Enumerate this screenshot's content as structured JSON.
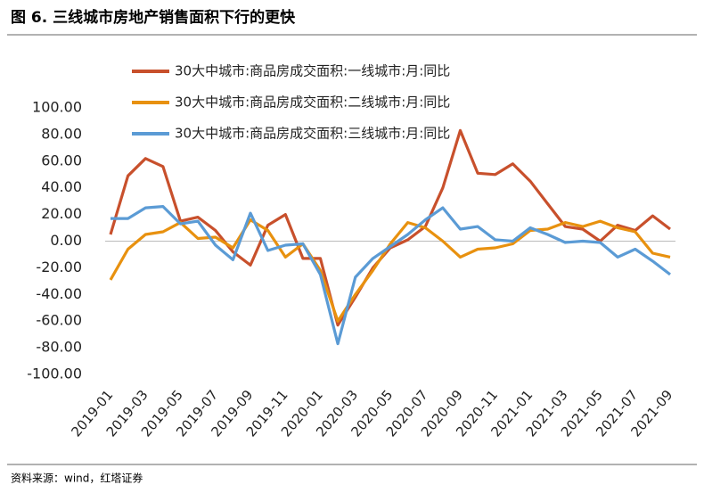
{
  "header": {
    "title": "图 6. 三线城市房地产销售面积下行的更快"
  },
  "footer": {
    "source": "资料来源：wind，红塔证券"
  },
  "chart_data": {
    "type": "line",
    "categories": [
      "2019-01",
      null,
      "2019-03",
      null,
      "2019-05",
      null,
      "2019-07",
      null,
      "2019-09",
      null,
      "2019-11",
      null,
      "2020-01",
      null,
      "2020-03",
      null,
      "2020-05",
      null,
      "2020-07",
      null,
      "2020-09",
      null,
      "2020-11",
      null,
      "2021-01",
      null,
      "2021-03",
      null,
      "2021-05",
      null,
      "2021-07",
      null,
      "2021-09"
    ],
    "series": [
      {
        "name": "30大中城市:商品房成交面积:一线城市:月:同比",
        "color": "#c8502c",
        "values": [
          5,
          49,
          62,
          56,
          15,
          18,
          8,
          -8,
          -18,
          12,
          20,
          -13,
          -13,
          -63,
          -42,
          -20,
          -5,
          1,
          11,
          40,
          83,
          51,
          50,
          58,
          45,
          28,
          11,
          9,
          0,
          12,
          8,
          19,
          9
        ]
      },
      {
        "name": "30大中城市:商品房成交面积:二线城市:月:同比",
        "color": "#e8910f",
        "values": [
          -29,
          -6,
          5,
          7,
          14,
          2,
          3,
          -5,
          16,
          8,
          -12,
          -2,
          -22,
          -60,
          -40,
          -22,
          -2,
          14,
          10,
          0,
          -12,
          -6,
          -5,
          -2,
          8,
          9,
          14,
          11,
          15,
          10,
          7,
          -9,
          -12
        ]
      },
      {
        "name": "30大中城市:商品房成交面积:三线城市:月:同比",
        "color": "#5b9bd5",
        "values": [
          17,
          17,
          25,
          26,
          13,
          15,
          -3,
          -14,
          21,
          -7,
          -3,
          -2,
          -25,
          -77,
          -27,
          -13,
          -4,
          5,
          16,
          25,
          9,
          11,
          1,
          0,
          10,
          5,
          -1,
          0,
          -1,
          -12,
          -6,
          -15,
          -25
        ]
      }
    ],
    "ylim": [
      -100,
      100
    ],
    "yticks": [
      {
        "value": -100,
        "label": "-100.00"
      },
      {
        "value": -80,
        "label": "-80.00"
      },
      {
        "value": -60,
        "label": "-60.00"
      },
      {
        "value": -40,
        "label": "-40.00"
      },
      {
        "value": -20,
        "label": "-20.00"
      },
      {
        "value": 0,
        "label": "0.00"
      },
      {
        "value": 20,
        "label": "20.00"
      },
      {
        "value": 40,
        "label": "40.00"
      },
      {
        "value": 60,
        "label": "60.00"
      },
      {
        "value": 80,
        "label": "80.00"
      },
      {
        "value": 100,
        "label": "100.00"
      }
    ],
    "grid": false
  }
}
